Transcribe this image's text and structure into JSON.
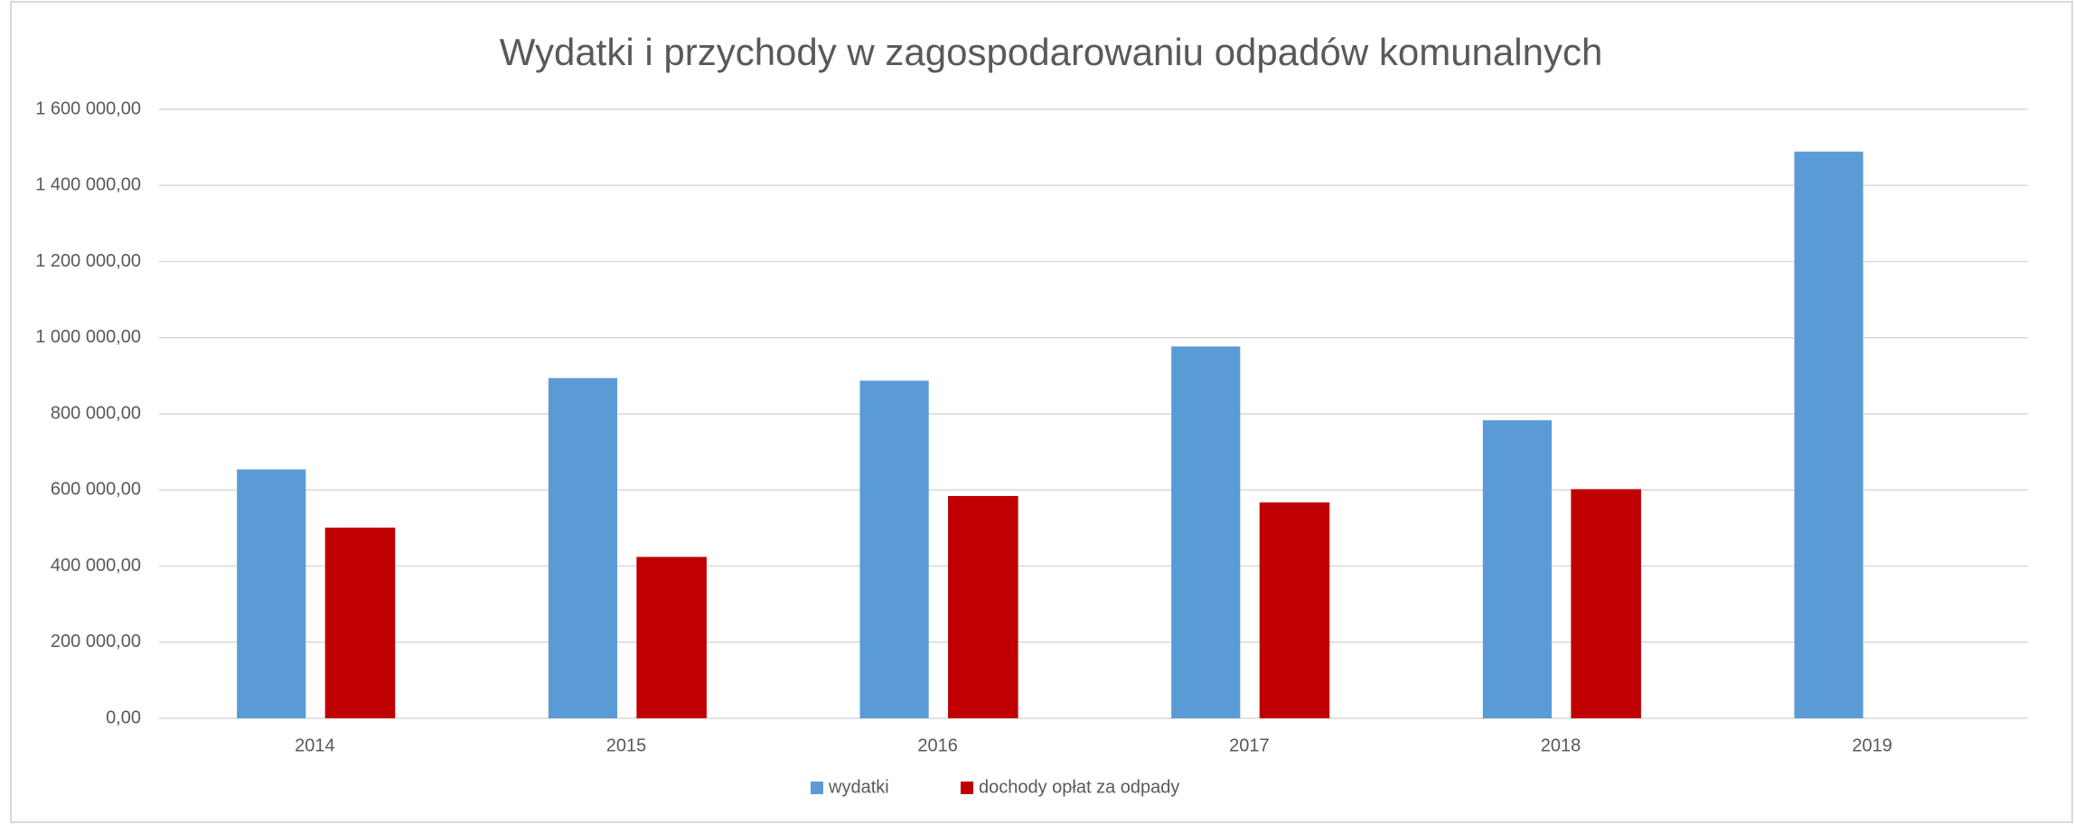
{
  "chart_data": {
    "type": "bar",
    "title": "Wydatki i przychody w zagospodarowaniu odpadów komunalnych",
    "categories": [
      "2014",
      "2015",
      "2016",
      "2017",
      "2018",
      "2019"
    ],
    "series": [
      {
        "name": "wydatki",
        "color": "#5b9bd5",
        "values": [
          654000,
          894000,
          887000,
          977000,
          783000,
          1489000
        ]
      },
      {
        "name": "dochody opłat za odpady",
        "color": "#c00000",
        "values": [
          501000,
          424000,
          584000,
          567000,
          602000,
          null
        ]
      }
    ],
    "ylim": [
      0,
      1600000
    ],
    "yticks": [
      {
        "value": 0,
        "label": "0,00"
      },
      {
        "value": 200000,
        "label": "200 000,00"
      },
      {
        "value": 400000,
        "label": "400 000,00"
      },
      {
        "value": 600000,
        "label": "600 000,00"
      },
      {
        "value": 800000,
        "label": "800 000,00"
      },
      {
        "value": 1000000,
        "label": "1 000 000,00"
      },
      {
        "value": 1200000,
        "label": "1 200 000,00"
      },
      {
        "value": 1400000,
        "label": "1 400 000,00"
      },
      {
        "value": 1600000,
        "label": "1 600 000,00"
      }
    ],
    "grid": true,
    "legend": "bottom"
  }
}
